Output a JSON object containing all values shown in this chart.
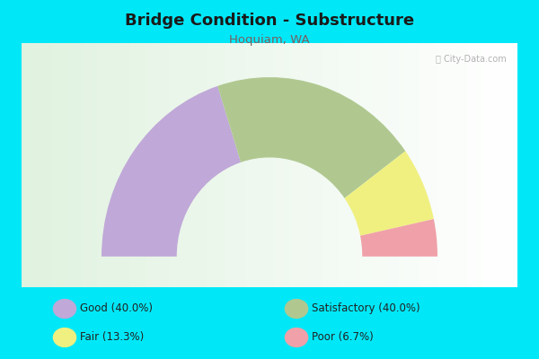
{
  "title": "Bridge Condition - Substructure",
  "subtitle": "Hoquiam, WA",
  "title_color": "#1a1a1a",
  "subtitle_color": "#7a6060",
  "bg_cyan": "#00e8f8",
  "chart_bg_left": "#e8f5e8",
  "chart_bg_right": "#f5f5f5",
  "watermark": "ⓘ City-Data.com",
  "segments": [
    {
      "label": "Good",
      "pct": 40.0,
      "color": "#c0a8d8"
    },
    {
      "label": "Satisfactory",
      "pct": 40.0,
      "color": "#b0c890"
    },
    {
      "label": "Fair",
      "pct": 13.3,
      "color": "#f0f080"
    },
    {
      "label": "Poor",
      "pct": 6.7,
      "color": "#f0a0a8"
    }
  ],
  "legend_labels": [
    "Good (40.0%)",
    "Satisfactory (40.0%)",
    "Fair (13.3%)",
    "Poor (6.7%)"
  ],
  "legend_colors": [
    "#c0a8d8",
    "#b0c890",
    "#f0f080",
    "#f0a0a8"
  ],
  "figsize": [
    6.0,
    4.0
  ],
  "dpi": 100
}
